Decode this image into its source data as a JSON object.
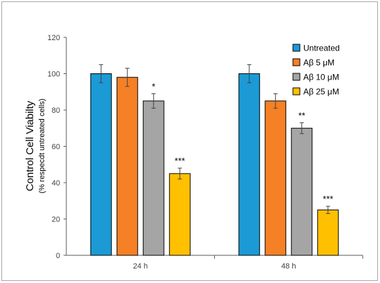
{
  "chart_data": {
    "type": "bar",
    "title": "",
    "xlabel": "",
    "ylabel": "Control Cell Viabilty",
    "ylabel_sub": "(% respecdt  untreated cells)",
    "ylim": [
      0,
      120
    ],
    "yticks": [
      "0",
      "20",
      "40",
      "60",
      "80",
      "100",
      "120"
    ],
    "categories": [
      "24 h",
      "48 h"
    ],
    "legend_position": "top-right",
    "grid": false,
    "series": [
      {
        "name": "Untreated",
        "color": "#1b9ad6",
        "values": [
          100,
          100
        ],
        "errors": [
          5,
          5
        ],
        "significance": [
          "",
          ""
        ]
      },
      {
        "name": "Aβ 5 μM",
        "color": "#f58025",
        "values": [
          98,
          85
        ],
        "errors": [
          5,
          4
        ],
        "significance": [
          "",
          ""
        ]
      },
      {
        "name": "Aβ 10 μM",
        "color": "#a5a5a5",
        "values": [
          85,
          70
        ],
        "errors": [
          4,
          3
        ],
        "significance": [
          "*",
          "**"
        ]
      },
      {
        "name": "Aβ 25 μM",
        "color": "#ffc000",
        "values": [
          45,
          25
        ],
        "errors": [
          3,
          2
        ],
        "significance": [
          "***",
          "***"
        ]
      }
    ]
  }
}
